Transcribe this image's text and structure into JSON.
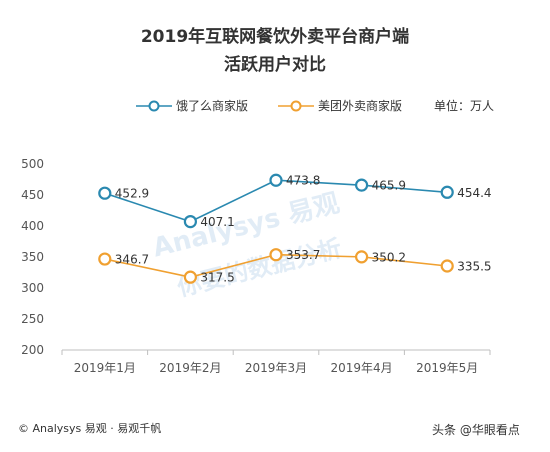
{
  "title_line1": "2019年互联网餐饮外卖平台商户端",
  "title_line2": "活跃用户对比",
  "unit_label": "单位：万人",
  "footer": "© Analysys 易观 · 易观千帆",
  "watermark_brand": "Analysys 易观",
  "watermark_tagline": "你要的数据分析",
  "watermark_source": "头条 @华眼看点",
  "colors": {
    "series1": "#2a89b0",
    "series2": "#f0a030",
    "axis": "#bfbfbf"
  },
  "chart_data": {
    "type": "line",
    "title": "2019年互联网餐饮外卖平台商户端 活跃用户对比",
    "xlabel": "",
    "ylabel": "",
    "categories": [
      "2019年1月",
      "2019年2月",
      "2019年3月",
      "2019年4月",
      "2019年5月"
    ],
    "y_ticks": [
      200,
      250,
      300,
      350,
      400,
      450,
      500
    ],
    "ylim": [
      200,
      500
    ],
    "grid": false,
    "legend_position": "top-left",
    "series": [
      {
        "name": "饿了么商家版",
        "values": [
          452.9,
          407.1,
          473.8,
          465.9,
          454.4
        ],
        "labels": [
          "452.9",
          "407.1",
          "473.8",
          "465.9",
          "454.4"
        ]
      },
      {
        "name": "美团外卖商家版",
        "values": [
          346.7,
          317.5,
          353.7,
          350.2,
          335.5
        ],
        "labels": [
          "346.7",
          "317.5",
          "353.7",
          "350.2",
          "335.5"
        ]
      }
    ]
  }
}
